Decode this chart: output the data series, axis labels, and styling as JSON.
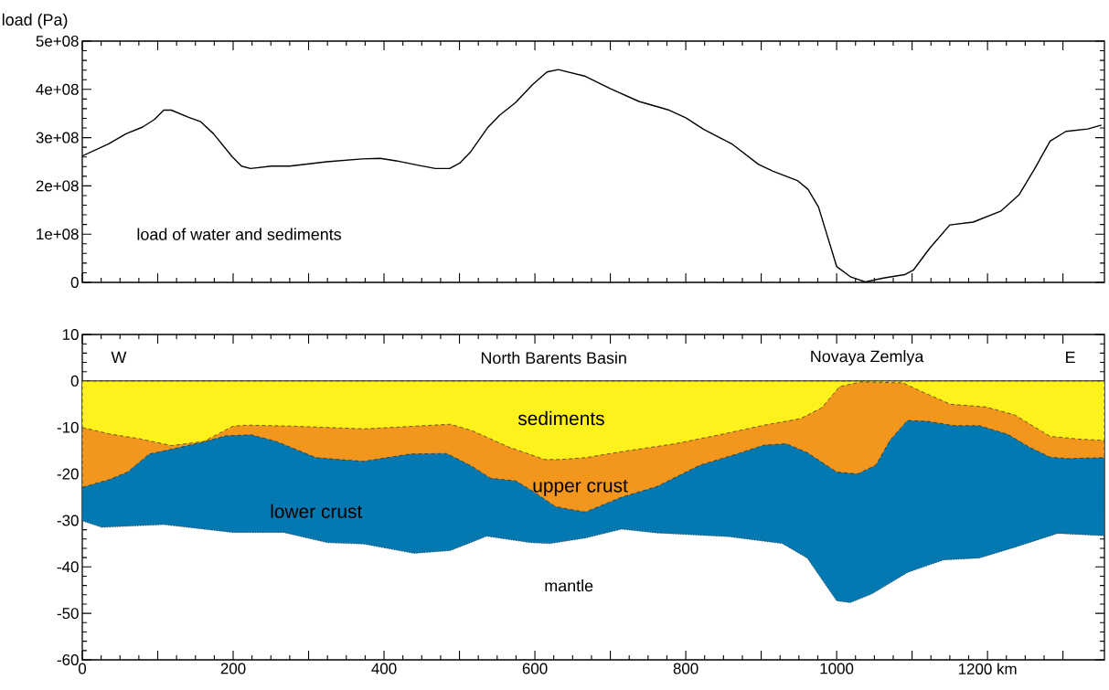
{
  "chart_data": [
    {
      "type": "line",
      "ylabel": "load (Pa)",
      "annotations": [
        "load of water and sediments"
      ],
      "color": "#000000",
      "tick_labels": "y",
      "x": [
        0,
        35,
        58,
        80,
        96,
        108,
        118,
        141,
        157,
        174,
        199,
        211,
        223,
        251,
        275,
        324,
        371,
        395,
        416,
        444,
        468,
        487,
        501,
        515,
        537,
        553,
        574,
        597,
        616,
        631,
        667,
        701,
        738,
        776,
        800,
        824,
        862,
        896,
        915,
        948,
        962,
        976,
        1000,
        1019,
        1038,
        1062,
        1090,
        1102,
        1123,
        1150,
        1181,
        1218,
        1242,
        1262,
        1283,
        1304,
        1333,
        1351
      ],
      "values": [
        262000000,
        287000000,
        308000000,
        322000000,
        338000000,
        357000000,
        357000000,
        342000000,
        333000000,
        308000000,
        260000000,
        241000000,
        236000000,
        241000000,
        241000000,
        250000000,
        256000000,
        257000000,
        252000000,
        243000000,
        236000000,
        236000000,
        248000000,
        271000000,
        320000000,
        346000000,
        372000000,
        410000000,
        436000000,
        441000000,
        427000000,
        401000000,
        375000000,
        358000000,
        341000000,
        317000000,
        286000000,
        245000000,
        231000000,
        211000000,
        193000000,
        156000000,
        33000000,
        11000000,
        1000000,
        9000000,
        16000000,
        26000000,
        70000000,
        119000000,
        125000000,
        148000000,
        182000000,
        234000000,
        293000000,
        313000000,
        318000000,
        326000000
      ],
      "xlim": [
        0,
        1355
      ],
      "ylim": [
        0,
        500000000
      ],
      "xticks": [
        0,
        100,
        200,
        300,
        400,
        500,
        600,
        700,
        800,
        900,
        1000,
        1100,
        1200,
        1300
      ],
      "yticks": [
        0,
        {
          "value": 100000000,
          "label": "1e+08"
        },
        {
          "value": 200000000,
          "label": "2e+08"
        },
        {
          "value": 300000000,
          "label": "3e+08"
        },
        {
          "value": 400000000,
          "label": "4e+08"
        },
        {
          "value": 500000000,
          "label": "5e+08"
        }
      ]
    },
    {
      "type": "area",
      "annotations": [
        "W",
        "North Barents Basin",
        "Novaya Zemlya",
        "E",
        "mantle"
      ],
      "series": [
        {
          "name": "sediments",
          "color": "#fff21c",
          "line_style": "dashed",
          "x": [
            0,
            36,
            75,
            118,
            161,
            200,
            219,
            276,
            373,
            421,
            488,
            517,
            565,
            613,
            634,
            667,
            715,
            786,
            847,
            904,
            952,
            980,
            1004,
            1032,
            1088,
            1113,
            1151,
            1198,
            1236,
            1283,
            1321,
            1355
          ],
          "values": [
            -10,
            -11.4,
            -12.4,
            -13.9,
            -13,
            -9.7,
            -9.5,
            -9.7,
            -10.3,
            -9.9,
            -9.3,
            -10.7,
            -14.2,
            -16.9,
            -16.9,
            -16.5,
            -15.2,
            -13.5,
            -11.5,
            -9.5,
            -8.1,
            -5.8,
            -1.2,
            -0.2,
            -0.4,
            -2.3,
            -5,
            -5.6,
            -7.3,
            -11.9,
            -12.5,
            -12.8
          ]
        },
        {
          "name": "upper crust",
          "color": "#f2961e",
          "line_style": "dashed",
          "x": [
            0,
            36,
            60,
            89,
            118,
            161,
            190,
            224,
            257,
            310,
            373,
            435,
            483,
            517,
            541,
            575,
            599,
            627,
            645,
            667,
            715,
            762,
            819,
            866,
            904,
            933,
            961,
            1000,
            1028,
            1052,
            1071,
            1094,
            1122,
            1155,
            1189,
            1227,
            1255,
            1283,
            1307,
            1355
          ],
          "values": [
            -22.9,
            -21.2,
            -19.6,
            -15.7,
            -14.7,
            -13.1,
            -11.8,
            -11.6,
            -13,
            -16.5,
            -17.3,
            -15.7,
            -15.6,
            -18.4,
            -20.9,
            -21.5,
            -23.9,
            -27,
            -27.6,
            -28.2,
            -25,
            -22.7,
            -18.1,
            -15.8,
            -13.8,
            -13.5,
            -15.4,
            -19.6,
            -20,
            -18.1,
            -12.7,
            -8.5,
            -8.7,
            -9.6,
            -9.6,
            -11.5,
            -14.2,
            -16.4,
            -16.7,
            -16.5
          ]
        },
        {
          "name": "lower crust",
          "color": "#0479b1",
          "line_style": "dotted",
          "x": [
            0,
            26,
            108,
            200,
            267,
            325,
            373,
            440,
            488,
            536,
            594,
            620,
            667,
            715,
            762,
            857,
            928,
            961,
            1000,
            1018,
            1047,
            1094,
            1142,
            1189,
            1236,
            1293,
            1355
          ],
          "values": [
            -30.1,
            -31.5,
            -30.9,
            -32.6,
            -32.6,
            -34.8,
            -35.1,
            -37.1,
            -36.5,
            -33.4,
            -34.8,
            -35,
            -33.8,
            -31.9,
            -32.7,
            -33.5,
            -35,
            -38.1,
            -47.3,
            -47.7,
            -45.8,
            -41.2,
            -38.5,
            -38.1,
            -35.8,
            -32.8,
            -33.3
          ]
        }
      ],
      "ref_lines": [
        {
          "axis": "y",
          "value": 0,
          "color": "#000000"
        }
      ],
      "xlim": [
        0,
        1355
      ],
      "ylim": [
        -60,
        10
      ],
      "xticks": [
        0,
        {
          "value": 100,
          "label": null
        },
        200,
        {
          "value": 300,
          "label": null
        },
        400,
        {
          "value": 500,
          "label": null
        },
        600,
        {
          "value": 700,
          "label": null
        },
        800,
        {
          "value": 900,
          "label": null
        },
        1000,
        {
          "value": 1100,
          "label": null
        },
        {
          "value": 1200,
          "label": "1200 km"
        },
        {
          "value": 1300,
          "label": null
        }
      ],
      "yticks": [
        -60,
        -50,
        -40,
        -30,
        -20,
        -10,
        0,
        10
      ]
    }
  ]
}
